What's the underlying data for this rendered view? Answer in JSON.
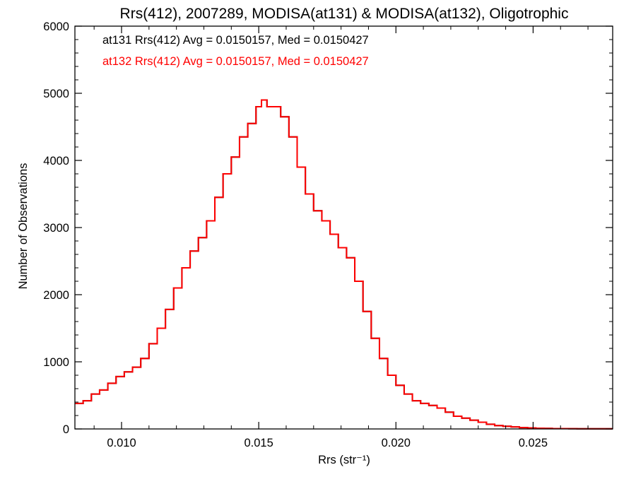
{
  "chart_data": {
    "type": "line",
    "title": "Rrs(412), 2007289, MODISA(at131) & MODISA(at132), Oligotrophic",
    "xlabel": "Rrs (str⁻¹)",
    "ylabel": "Number of Observations",
    "xlim": [
      0.0083,
      0.0279
    ],
    "ylim": [
      0,
      6000
    ],
    "xticks": [
      0.01,
      0.015,
      0.02,
      0.025
    ],
    "xtick_labels": [
      "0.010",
      "0.015",
      "0.020",
      "0.025"
    ],
    "yticks": [
      0,
      1000,
      2000,
      3000,
      4000,
      5000,
      6000
    ],
    "ytick_labels": [
      "0",
      "1000",
      "2000",
      "3000",
      "4000",
      "5000",
      "6000"
    ],
    "grid": false,
    "step": true,
    "series": [
      {
        "name": "at131",
        "color": "#000000",
        "label": "at131 Rrs(412) Avg = 0.0150157, Med = 0.0150427",
        "x": [
          0.0083,
          0.0086,
          0.0089,
          0.0092,
          0.0095,
          0.0098,
          0.0101,
          0.0104,
          0.0107,
          0.011,
          0.0113,
          0.0116,
          0.0119,
          0.0122,
          0.0125,
          0.0128,
          0.0131,
          0.0134,
          0.0137,
          0.014,
          0.0143,
          0.0146,
          0.0149,
          0.0151,
          0.0153,
          0.0155,
          0.0158,
          0.0161,
          0.0164,
          0.0167,
          0.017,
          0.0173,
          0.0176,
          0.0179,
          0.0182,
          0.0185,
          0.0188,
          0.0191,
          0.0194,
          0.0197,
          0.02,
          0.0203,
          0.0206,
          0.0209,
          0.0212,
          0.0215,
          0.0218,
          0.0221,
          0.0224,
          0.0227,
          0.023,
          0.0233,
          0.0236,
          0.0239,
          0.0242,
          0.0245,
          0.0248,
          0.0251,
          0.0254,
          0.0257,
          0.026,
          0.0263,
          0.0266,
          0.0269,
          0.0272,
          0.0275,
          0.0279
        ],
        "y": [
          380,
          420,
          520,
          580,
          680,
          780,
          850,
          920,
          1050,
          1270,
          1500,
          1780,
          2100,
          2400,
          2650,
          2850,
          3100,
          3450,
          3800,
          4050,
          4350,
          4550,
          4800,
          4900,
          4800,
          4800,
          4650,
          4350,
          3900,
          3500,
          3250,
          3100,
          2900,
          2700,
          2550,
          2200,
          1750,
          1350,
          1050,
          800,
          650,
          520,
          420,
          380,
          350,
          310,
          250,
          190,
          160,
          130,
          100,
          70,
          50,
          40,
          30,
          20,
          15,
          10,
          8,
          5,
          5,
          4,
          3,
          2,
          2,
          2,
          2
        ]
      },
      {
        "name": "at132",
        "color": "#ff0000",
        "label": "at132 Rrs(412) Avg = 0.0150157, Med = 0.0150427",
        "x": [
          0.0083,
          0.0086,
          0.0089,
          0.0092,
          0.0095,
          0.0098,
          0.0101,
          0.0104,
          0.0107,
          0.011,
          0.0113,
          0.0116,
          0.0119,
          0.0122,
          0.0125,
          0.0128,
          0.0131,
          0.0134,
          0.0137,
          0.014,
          0.0143,
          0.0146,
          0.0149,
          0.0151,
          0.0153,
          0.0155,
          0.0158,
          0.0161,
          0.0164,
          0.0167,
          0.017,
          0.0173,
          0.0176,
          0.0179,
          0.0182,
          0.0185,
          0.0188,
          0.0191,
          0.0194,
          0.0197,
          0.02,
          0.0203,
          0.0206,
          0.0209,
          0.0212,
          0.0215,
          0.0218,
          0.0221,
          0.0224,
          0.0227,
          0.023,
          0.0233,
          0.0236,
          0.0239,
          0.0242,
          0.0245,
          0.0248,
          0.0251,
          0.0254,
          0.0257,
          0.026,
          0.0263,
          0.0266,
          0.0269,
          0.0272,
          0.0275,
          0.0279
        ],
        "y": [
          380,
          420,
          520,
          580,
          680,
          780,
          850,
          920,
          1050,
          1270,
          1500,
          1780,
          2100,
          2400,
          2650,
          2850,
          3100,
          3450,
          3800,
          4050,
          4350,
          4550,
          4800,
          4900,
          4800,
          4800,
          4650,
          4350,
          3900,
          3500,
          3250,
          3100,
          2900,
          2700,
          2550,
          2200,
          1750,
          1350,
          1050,
          800,
          650,
          520,
          420,
          380,
          350,
          310,
          250,
          190,
          160,
          130,
          100,
          70,
          50,
          40,
          30,
          20,
          15,
          10,
          8,
          5,
          5,
          4,
          3,
          2,
          2,
          2,
          2
        ]
      }
    ]
  }
}
